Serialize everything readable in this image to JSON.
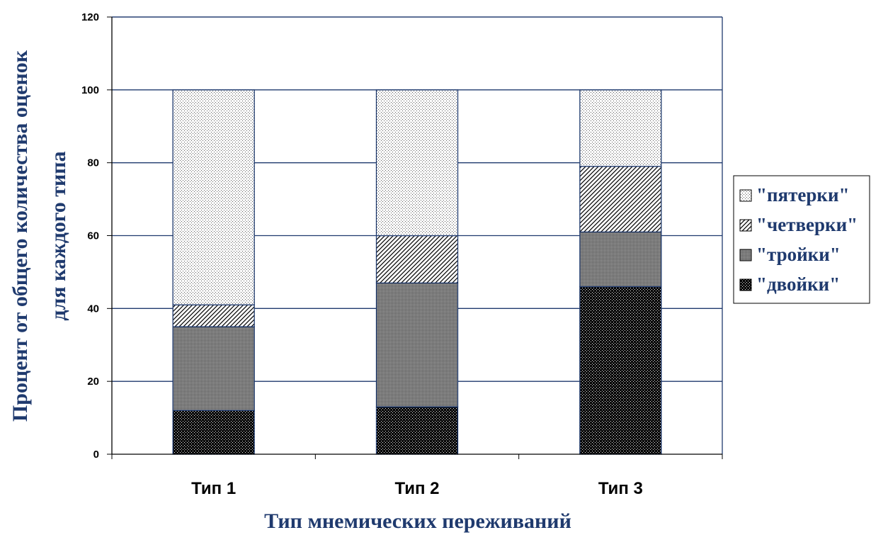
{
  "chart_data": {
    "type": "bar",
    "stacked": true,
    "categories": [
      "Тип 1",
      "Тип 2",
      "Тип 3"
    ],
    "series": [
      {
        "name": "\"двойки\"",
        "values": [
          12,
          13,
          46
        ],
        "pattern": "dark"
      },
      {
        "name": "\"тройки\"",
        "values": [
          23,
          34,
          15
        ],
        "pattern": "medium"
      },
      {
        "name": "\"четверки\"",
        "values": [
          6,
          13,
          18
        ],
        "pattern": "diagonal"
      },
      {
        "name": "\"пятерки\"",
        "values": [
          59,
          40,
          21
        ],
        "pattern": "light"
      }
    ],
    "legend_order": [
      "\"пятерки\"",
      "\"четверки\"",
      "\"тройки\"",
      "\"двойки\""
    ],
    "ylabel_line1": "Процент от общего количества оценок",
    "ylabel_line2": "для каждого типа",
    "xlabel": "Тип мнемических переживаний",
    "ylim": [
      0,
      120
    ],
    "yticks": [
      "0",
      "20",
      "40",
      "60",
      "80",
      "100",
      "120"
    ],
    "grid": true,
    "legend_position": "right",
    "colors": {
      "grid": "#1f3a6e",
      "axis_title": "#1f3a6e",
      "bar_outline": "#1f3a6e"
    }
  }
}
